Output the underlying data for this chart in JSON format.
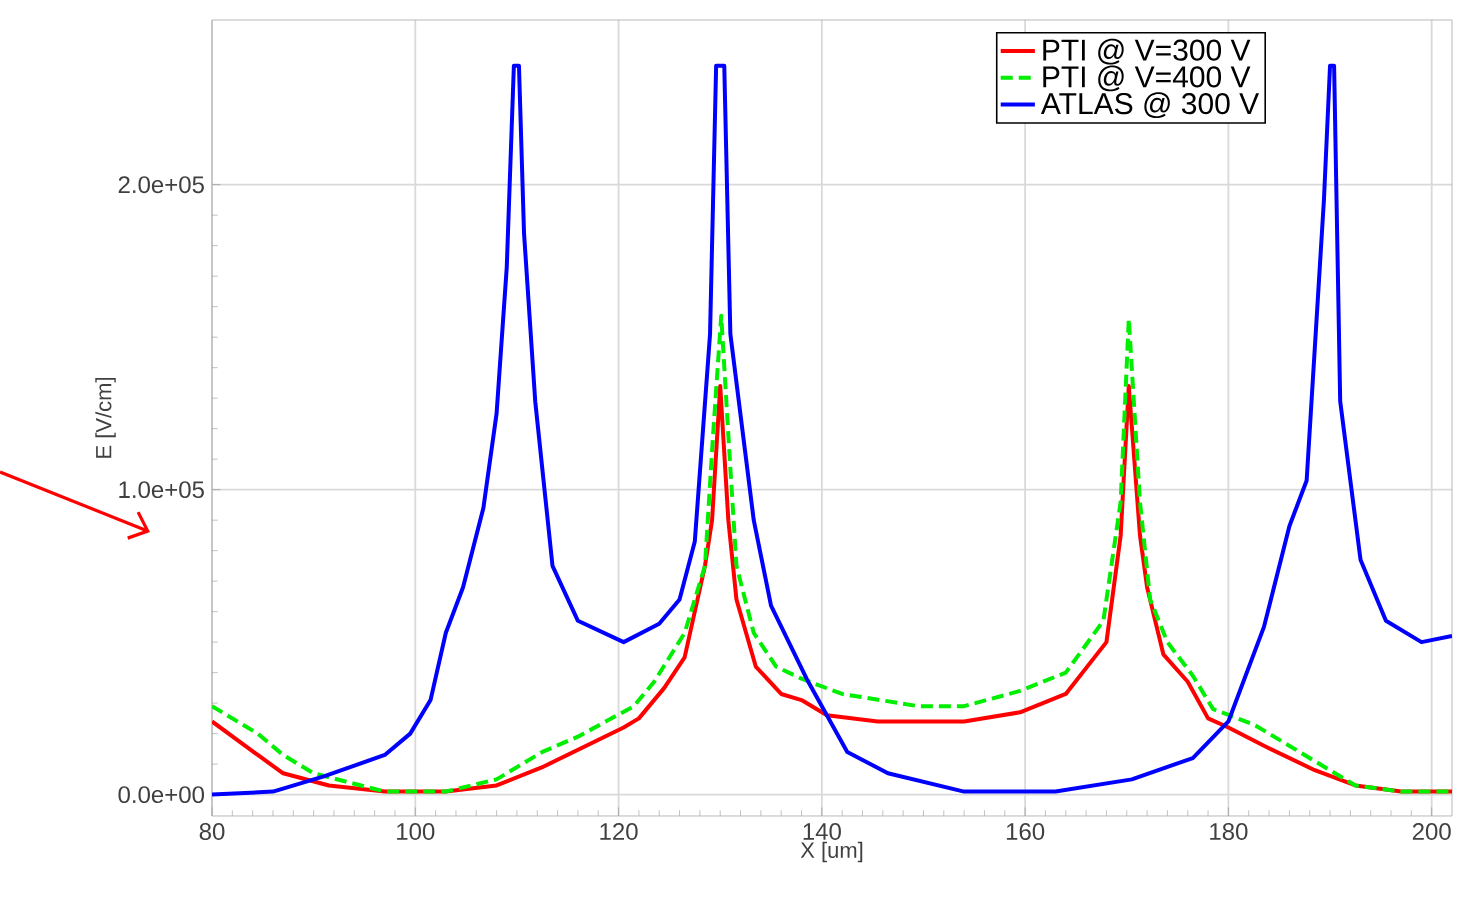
{
  "chart_data": {
    "type": "line",
    "xlabel": "X [um]",
    "ylabel": "E [V/cm]",
    "xlim": [
      80,
      202
    ],
    "ylim": [
      -7000,
      254000
    ],
    "xticks": [
      80,
      100,
      120,
      140,
      160,
      180,
      200
    ],
    "yticks": [
      {
        "value": 0,
        "label": "0.0e+00"
      },
      {
        "value": 100000,
        "label": "1.0e+05"
      },
      {
        "value": 200000,
        "label": "2.0e+05"
      }
    ],
    "grid": true,
    "legend": "top right",
    "series": [
      {
        "name": "PTI @ V=300 V",
        "color": "#ff0000",
        "line_style": "solid",
        "x": [
          80,
          84.5,
          87,
          91.5,
          97,
          103,
          108,
          112.5,
          120.5,
          122,
          124.5,
          126.5,
          128.5,
          129.2,
          130,
          130.8,
          131.6,
          133.5,
          136,
          138,
          140.5,
          145.5,
          154,
          159.5,
          164,
          168,
          169.4,
          170.2,
          171.3,
          172,
          173.6,
          176,
          178,
          180,
          183.5,
          188.5,
          192.5,
          197,
          202
        ],
        "values": [
          24000,
          13000,
          7000,
          3000,
          1000,
          1000,
          3000,
          9000,
          22000,
          25000,
          35000,
          45000,
          75000,
          90000,
          134000,
          90000,
          64000,
          42000,
          33000,
          31000,
          26000,
          24000,
          24000,
          27000,
          33000,
          50000,
          85000,
          134000,
          85000,
          68000,
          46000,
          37000,
          25000,
          22000,
          16000,
          8000,
          3000,
          1000,
          1000
        ]
      },
      {
        "name": "PTI @ V=400 V",
        "color": "#00ee00",
        "line_style": "dashed",
        "x": [
          80,
          84.5,
          87,
          90,
          97,
          103,
          108,
          112.5,
          116,
          121.5,
          123.5,
          126.5,
          128.5,
          129.3,
          130.1,
          131,
          131.6,
          133.3,
          135.5,
          138,
          142,
          149.5,
          154,
          159.5,
          164,
          167.7,
          169.4,
          170.2,
          171.3,
          172.3,
          174,
          176.5,
          178.5,
          182.5,
          187.5,
          192.5,
          197,
          202
        ],
        "values": [
          29000,
          20000,
          13000,
          7000,
          1000,
          1000,
          5000,
          14000,
          19000,
          29000,
          37000,
          53000,
          75000,
          118000,
          157000,
          107000,
          75000,
          53000,
          42000,
          38000,
          33000,
          29000,
          29000,
          34000,
          40000,
          57000,
          96000,
          156000,
          96000,
          64000,
          50000,
          39000,
          28000,
          23000,
          13000,
          3000,
          1000,
          1000
        ]
      },
      {
        "name": "ATLAS @ 300 V",
        "color": "#0000ff",
        "line_style": "solid",
        "x": [
          80,
          86,
          91,
          97,
          99.5,
          101.5,
          103,
          104.7,
          106.7,
          108,
          109,
          109.7,
          110.2,
          110.7,
          111.8,
          113.5,
          116,
          120.5,
          124,
          126,
          127.5,
          129,
          129.6,
          130.4,
          131,
          133.3,
          135,
          138.5,
          142.5,
          146.5,
          154,
          163,
          170.5,
          176.5,
          180,
          183.5,
          186,
          187.7,
          189.4,
          190,
          190.4,
          191,
          193,
          195.5,
          199,
          202
        ],
        "values": [
          0,
          1000,
          6000,
          13000,
          20000,
          31000,
          53000,
          68000,
          94000,
          125000,
          173000,
          239000,
          239000,
          184000,
          129000,
          75000,
          57000,
          50000,
          56000,
          64000,
          83000,
          151000,
          239000,
          239000,
          151000,
          90000,
          62000,
          38000,
          14000,
          7000,
          1000,
          1000,
          5000,
          12000,
          24000,
          55000,
          88000,
          103000,
          195000,
          239000,
          239000,
          129000,
          77000,
          57000,
          50000,
          52000
        ]
      }
    ]
  }
}
